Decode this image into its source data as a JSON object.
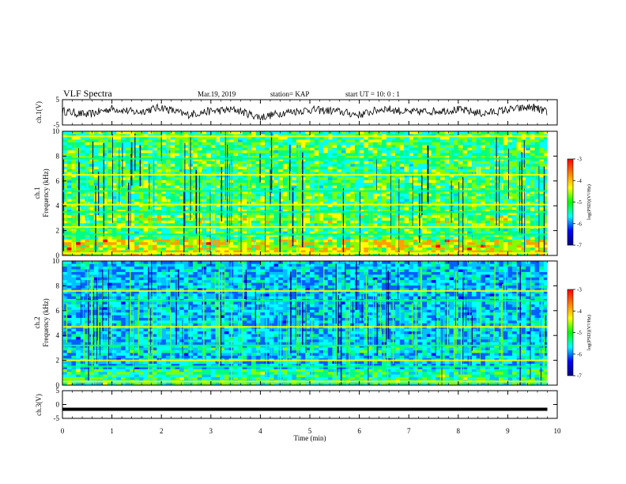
{
  "header": {
    "title": "VLF Spectra",
    "date": "Mar.19, 2019",
    "station": "station= KAP",
    "start": "start  UT  =   10: 0  : 1"
  },
  "colorbar": {
    "label": "log(PSD)(V²/Hz)",
    "ticks": [
      -3,
      -4,
      -5,
      -6,
      -7
    ],
    "stops": [
      "#ff0000",
      "#ff8000",
      "#ffff00",
      "#00ff00",
      "#00ffff",
      "#0000ff",
      "#000080"
    ]
  },
  "chart_data": [
    {
      "type": "line",
      "panel": "ch1-waveform",
      "ylabel": "ch.1(V)",
      "xlim": [
        0,
        10
      ],
      "ylim": [
        -5,
        5
      ],
      "yticks": [
        5,
        -5
      ],
      "series": [
        {
          "x": [
            0,
            0.5,
            1,
            1.5,
            2,
            2.5,
            3,
            3.5,
            4,
            4.5,
            5,
            5.5,
            6,
            6.5,
            7,
            7.5,
            8,
            8.5,
            9,
            9.5,
            9.8
          ],
          "values": [
            0.5,
            -1,
            1.5,
            0,
            2,
            -1,
            0.5,
            1,
            -2,
            0,
            1,
            0.5,
            -1,
            1.5,
            0,
            0.5,
            1,
            -0.5,
            1,
            2,
            0
          ]
        }
      ]
    },
    {
      "type": "heatmap",
      "panel": "ch1-spectrogram",
      "ylabel_top": "ch.1",
      "ylabel": "Frequency  (kHz)",
      "xlim": [
        0,
        10
      ],
      "ylim": [
        0,
        10
      ],
      "yticks": [
        0,
        2,
        4,
        6,
        8,
        10
      ],
      "z_range": [
        -7,
        -3
      ],
      "bands_khz": [
        0.2,
        1.7,
        2.3,
        3.5,
        4.1,
        5.2,
        6.5,
        7.8,
        9.6
      ]
    },
    {
      "type": "heatmap",
      "panel": "ch2-spectrogram",
      "ylabel_top": "ch.2",
      "ylabel": "Frequency  (kHz)",
      "xlim": [
        0,
        10
      ],
      "ylim": [
        0,
        10
      ],
      "yticks": [
        0,
        2,
        4,
        6,
        8,
        10
      ],
      "z_range": [
        -7,
        -3
      ],
      "bands_khz": [
        0.3,
        1.5,
        2.0,
        3.2,
        4.7,
        6.8,
        7.6
      ]
    },
    {
      "type": "line",
      "panel": "ch3-waveform",
      "ylabel": "ch.3(V)",
      "xlabel": "Time  (min)",
      "xlim": [
        0,
        10
      ],
      "ylim": [
        -5,
        5
      ],
      "yticks": [
        5,
        0,
        -5
      ],
      "xticks": [
        0,
        1,
        2,
        3,
        4,
        5,
        6,
        7,
        8,
        9,
        10
      ],
      "series": [
        {
          "x": [
            0,
            9.8
          ],
          "values": [
            -1.7,
            -1.7
          ]
        }
      ]
    }
  ]
}
